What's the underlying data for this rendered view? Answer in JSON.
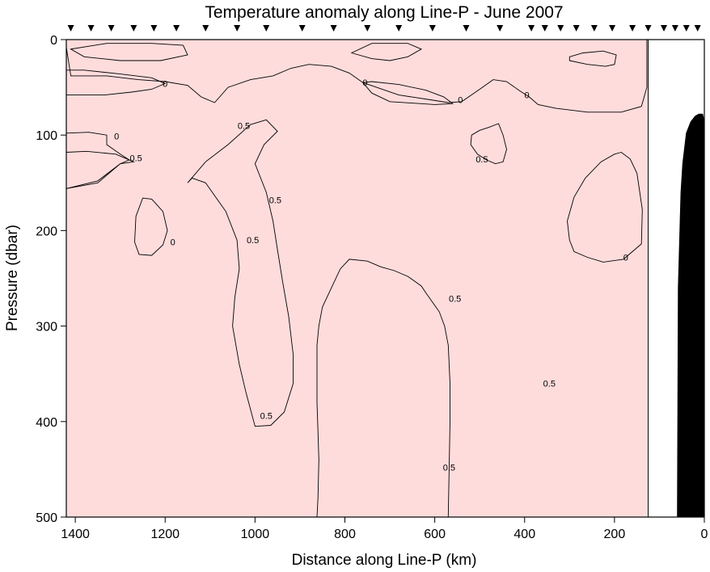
{
  "chart_data": {
    "type": "contour",
    "title": "Temperature anomaly along Line-P - June 2007",
    "xlabel": "Distance along Line-P (km)",
    "ylabel": "Pressure (dbar)",
    "xlim": [
      1420,
      0
    ],
    "ylim": [
      0,
      500
    ],
    "x_ticks": [
      1400,
      1200,
      1000,
      800,
      600,
      400,
      200,
      0
    ],
    "x_tick_labels": [
      "1400",
      "1200",
      "1000",
      "800",
      "600",
      "400",
      "200",
      "0"
    ],
    "y_ticks": [
      0,
      100,
      200,
      300,
      400,
      500
    ],
    "y_tick_labels": [
      "0",
      "100",
      "200",
      "300",
      "400",
      "500"
    ],
    "grid": false,
    "contour_levels": [
      0,
      0.5
    ],
    "fill_colors": {
      "below_0": "#bffcfc",
      "below_0_deep": "#5ef4f4",
      "0_to_0.5": "#ffdcdc",
      "above_0.5": "#ffbfbf",
      "bathymetry": "#000000"
    },
    "data_extent_km": [
      125,
      1420
    ],
    "station_markers_km": [
      1410,
      1365,
      1320,
      1270,
      1225,
      1175,
      1110,
      1040,
      975,
      895,
      825,
      750,
      680,
      605,
      530,
      455,
      385,
      355,
      320,
      285,
      245,
      205,
      160,
      125,
      90,
      65,
      40,
      15
    ],
    "contour_labels": [
      {
        "text": "0",
        "x_km": 1200,
        "p_dbar": 46
      },
      {
        "text": "0",
        "x_km": 1308,
        "p_dbar": 101
      },
      {
        "text": "0.5",
        "x_km": 1265,
        "p_dbar": 124
      },
      {
        "text": "0.5",
        "x_km": 1025,
        "p_dbar": 90
      },
      {
        "text": "0.5",
        "x_km": 955,
        "p_dbar": 168
      },
      {
        "text": "0",
        "x_km": 1183,
        "p_dbar": 212
      },
      {
        "text": "0.5",
        "x_km": 1005,
        "p_dbar": 210
      },
      {
        "text": "0",
        "x_km": 755,
        "p_dbar": 45
      },
      {
        "text": "0",
        "x_km": 543,
        "p_dbar": 63
      },
      {
        "text": "0",
        "x_km": 395,
        "p_dbar": 58
      },
      {
        "text": "0.5",
        "x_km": 495,
        "p_dbar": 125
      },
      {
        "text": "0.5",
        "x_km": 555,
        "p_dbar": 271
      },
      {
        "text": "0.5",
        "x_km": 345,
        "p_dbar": 360
      },
      {
        "text": "0.5",
        "x_km": 975,
        "p_dbar": 394
      },
      {
        "text": "0.5",
        "x_km": 568,
        "p_dbar": 448
      },
      {
        "text": "0",
        "x_km": 175,
        "p_dbar": 228
      }
    ],
    "regions": [
      {
        "level": "below_0",
        "points": [
          [
            1420,
            8
          ],
          [
            1410,
            38
          ],
          [
            1330,
            38
          ],
          [
            1260,
            42
          ],
          [
            1200,
            44
          ],
          [
            1150,
            48
          ],
          [
            1120,
            60
          ],
          [
            1090,
            66
          ],
          [
            1060,
            50
          ],
          [
            1010,
            42
          ],
          [
            960,
            38
          ],
          [
            920,
            30
          ],
          [
            880,
            26
          ],
          [
            830,
            28
          ],
          [
            790,
            35
          ],
          [
            760,
            45
          ],
          [
            680,
            58
          ],
          [
            610,
            63
          ],
          [
            570,
            66
          ],
          [
            540,
            65
          ],
          [
            500,
            52
          ],
          [
            470,
            42
          ],
          [
            440,
            44
          ],
          [
            410,
            54
          ],
          [
            390,
            60
          ],
          [
            370,
            68
          ],
          [
            330,
            72
          ],
          [
            260,
            76
          ],
          [
            185,
            76
          ],
          [
            140,
            70
          ],
          [
            128,
            50
          ],
          [
            128,
            0
          ],
          [
            1420,
            0
          ]
        ]
      },
      {
        "level": "below_0",
        "points": [
          [
            1420,
            58
          ],
          [
            1335,
            58
          ],
          [
            1275,
            55
          ],
          [
            1230,
            52
          ],
          [
            1200,
            46
          ],
          [
            1230,
            40
          ],
          [
            1300,
            36
          ],
          [
            1380,
            32
          ],
          [
            1420,
            32
          ]
        ]
      },
      {
        "level": "below_0",
        "points": [
          [
            1420,
            156
          ],
          [
            1350,
            150
          ],
          [
            1300,
            130
          ],
          [
            1280,
            126
          ],
          [
            1300,
            120
          ],
          [
            1330,
            110
          ],
          [
            1330,
            100
          ],
          [
            1370,
            97
          ],
          [
            1420,
            98
          ]
        ]
      },
      {
        "level": "below_0",
        "points": [
          [
            760,
            45
          ],
          [
            740,
            56
          ],
          [
            700,
            65
          ],
          [
            600,
            68
          ],
          [
            560,
            67
          ],
          [
            580,
            60
          ],
          [
            620,
            53
          ],
          [
            680,
            47
          ],
          [
            740,
            44
          ]
        ]
      },
      {
        "level": "below_0",
        "points": [
          [
            1250,
            166
          ],
          [
            1230,
            167
          ],
          [
            1205,
            180
          ],
          [
            1195,
            200
          ],
          [
            1205,
            215
          ],
          [
            1230,
            226
          ],
          [
            1258,
            225
          ],
          [
            1268,
            212
          ],
          [
            1265,
            185
          ]
        ]
      },
      {
        "level": "below_0",
        "points": [
          [
            185,
            118
          ],
          [
            200,
            120
          ],
          [
            230,
            128
          ],
          [
            265,
            145
          ],
          [
            290,
            165
          ],
          [
            305,
            190
          ],
          [
            300,
            210
          ],
          [
            290,
            222
          ],
          [
            260,
            228
          ],
          [
            225,
            233
          ],
          [
            180,
            230
          ],
          [
            140,
            214
          ],
          [
            138,
            178
          ],
          [
            150,
            140
          ],
          [
            165,
            125
          ]
        ]
      },
      {
        "level": "below_0_deep",
        "points": [
          [
            1410,
            10
          ],
          [
            1380,
            18
          ],
          [
            1300,
            22
          ],
          [
            1210,
            22
          ],
          [
            1150,
            16
          ],
          [
            1160,
            6
          ],
          [
            1230,
            4
          ],
          [
            1330,
            4
          ]
        ]
      },
      {
        "level": "below_0_deep",
        "points": [
          [
            785,
            14
          ],
          [
            740,
            20
          ],
          [
            700,
            22
          ],
          [
            660,
            18
          ],
          [
            630,
            10
          ],
          [
            660,
            4
          ],
          [
            740,
            4
          ]
        ]
      },
      {
        "level": "below_0_deep",
        "points": [
          [
            300,
            22
          ],
          [
            260,
            26
          ],
          [
            220,
            28
          ],
          [
            200,
            26
          ],
          [
            196,
            16
          ],
          [
            225,
            12
          ],
          [
            270,
            14
          ],
          [
            300,
            18
          ]
        ]
      },
      {
        "level": "above_0.5",
        "points": [
          [
            1420,
            118
          ],
          [
            1375,
            117
          ],
          [
            1310,
            120
          ],
          [
            1270,
            128
          ],
          [
            1300,
            130
          ],
          [
            1350,
            148
          ],
          [
            1420,
            156
          ]
        ]
      },
      {
        "level": "above_0.5",
        "points": [
          [
            975,
            84
          ],
          [
            1010,
            89
          ],
          [
            1060,
            110
          ],
          [
            1110,
            128
          ],
          [
            1150,
            150
          ],
          [
            1140,
            145
          ],
          [
            1110,
            150
          ],
          [
            1065,
            180
          ],
          [
            1040,
            210
          ],
          [
            1035,
            240
          ],
          [
            1045,
            270
          ],
          [
            1050,
            300
          ],
          [
            1035,
            340
          ],
          [
            1020,
            370
          ],
          [
            1000,
            405
          ],
          [
            965,
            404
          ],
          [
            935,
            390
          ],
          [
            915,
            360
          ],
          [
            915,
            330
          ],
          [
            925,
            290
          ],
          [
            938,
            255
          ],
          [
            950,
            220
          ],
          [
            960,
            190
          ],
          [
            975,
            160
          ],
          [
            1000,
            130
          ],
          [
            980,
            110
          ],
          [
            950,
            96
          ]
        ]
      },
      {
        "level": "above_0.5",
        "points": [
          [
            458,
            88
          ],
          [
            480,
            92
          ],
          [
            500,
            95
          ],
          [
            518,
            100
          ],
          [
            520,
            110
          ],
          [
            505,
            120
          ],
          [
            485,
            126
          ],
          [
            465,
            130
          ],
          [
            448,
            128
          ],
          [
            440,
            115
          ],
          [
            448,
            100
          ]
        ]
      },
      {
        "level": "above_0.5",
        "points": [
          [
            570,
            500
          ],
          [
            568,
            450
          ],
          [
            566,
            400
          ],
          [
            566,
            360
          ],
          [
            568,
            340
          ],
          [
            570,
            320
          ],
          [
            578,
            300
          ],
          [
            590,
            285
          ],
          [
            620,
            265
          ],
          [
            630,
            258
          ],
          [
            660,
            248
          ],
          [
            690,
            242
          ],
          [
            720,
            238
          ],
          [
            750,
            232
          ],
          [
            790,
            230
          ],
          [
            810,
            240
          ],
          [
            830,
            260
          ],
          [
            850,
            280
          ],
          [
            858,
            300
          ],
          [
            862,
            320
          ],
          [
            862,
            350
          ],
          [
            862,
            380
          ],
          [
            860,
            410
          ],
          [
            858,
            440
          ],
          [
            860,
            480
          ],
          [
            862,
            500
          ]
        ]
      }
    ],
    "bathymetry_profile": [
      [
        120,
        500
      ],
      [
        60,
        500
      ],
      [
        58,
        260
      ],
      [
        52,
        160
      ],
      [
        48,
        130
      ],
      [
        40,
        98
      ],
      [
        30,
        86
      ],
      [
        20,
        80
      ],
      [
        12,
        78
      ],
      [
        4,
        78
      ],
      [
        1,
        84
      ],
      [
        0,
        110
      ],
      [
        0,
        500
      ]
    ]
  }
}
